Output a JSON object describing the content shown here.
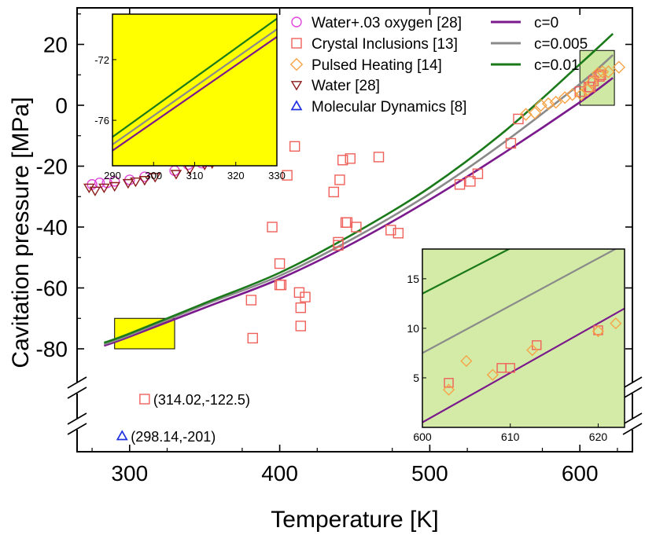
{
  "chart_data": {
    "type": "scatter",
    "title": "",
    "xlabel": "Temperature [K]",
    "ylabel": "Cavitation pressure [MPa]",
    "xlim": [
      265,
      635
    ],
    "ylim_main": [
      -88,
      32
    ],
    "yticks_main": [
      -80,
      -60,
      -40,
      -20,
      0,
      20
    ],
    "xticks": [
      300,
      400,
      500,
      600
    ],
    "legend_markers": [
      {
        "key": "water_oxygen",
        "label": "Water+.03 oxygen [28]",
        "marker": "circle",
        "color": "#e044d8"
      },
      {
        "key": "crystal",
        "label": "Crystal Inclusions [13]",
        "marker": "square",
        "color": "#f0605a"
      },
      {
        "key": "pulsed",
        "label": "Pulsed Heating [14]",
        "marker": "diamond",
        "color": "#f7a347"
      },
      {
        "key": "water",
        "label": "Water [28]",
        "marker": "triangle-down",
        "color": "#8b1a1a"
      },
      {
        "key": "md",
        "label": "Molecular Dynamics [8]",
        "marker": "triangle-up",
        "color": "#1f2fe0"
      }
    ],
    "legend_lines": [
      {
        "key": "c0",
        "label": "c=0",
        "color": "#7b1a8c"
      },
      {
        "key": "c005",
        "label": "c=0.005",
        "color": "#8a8a8a"
      },
      {
        "key": "c01",
        "label": "c=0.01",
        "color": "#1a7a1a"
      }
    ],
    "series": {
      "water_oxygen": [
        [
          275,
          -26
        ],
        [
          280,
          -25.5
        ],
        [
          285,
          -25.5
        ],
        [
          290,
          -25
        ],
        [
          300,
          -24.5
        ],
        [
          310,
          -23.5
        ],
        [
          330,
          -21.5
        ],
        [
          339,
          -19.5
        ],
        [
          348,
          -19
        ],
        [
          353,
          -18.5
        ]
      ],
      "water": [
        [
          273,
          -27
        ],
        [
          277,
          -28
        ],
        [
          283,
          -27
        ],
        [
          290,
          -26.5
        ],
        [
          299,
          -25.5
        ],
        [
          304,
          -25
        ],
        [
          310,
          -24.5
        ],
        [
          317,
          -23.5
        ],
        [
          331,
          -22.5
        ],
        [
          340,
          -21
        ],
        [
          350,
          -19.5
        ],
        [
          355,
          -19
        ]
      ],
      "crystal": [
        [
          381,
          -64
        ],
        [
          382,
          -76.5
        ],
        [
          395,
          -40
        ],
        [
          400,
          -52
        ],
        [
          400,
          -59
        ],
        [
          401,
          -59
        ],
        [
          405,
          -23
        ],
        [
          410,
          -13.5
        ],
        [
          413,
          -61.5
        ],
        [
          414,
          -66.5
        ],
        [
          414,
          -72.5
        ],
        [
          417,
          -63
        ],
        [
          436,
          -28.5
        ],
        [
          439,
          -46
        ],
        [
          439,
          -45
        ],
        [
          440,
          -24.5
        ],
        [
          442,
          -18
        ],
        [
          444,
          -38.5
        ],
        [
          445,
          -38.5
        ],
        [
          447,
          -17.5
        ],
        [
          451,
          -40
        ],
        [
          466,
          -17
        ],
        [
          474,
          -41
        ],
        [
          479,
          -42
        ],
        [
          520,
          -26
        ],
        [
          527,
          -25
        ],
        [
          532,
          -22.5
        ],
        [
          554,
          -12.5
        ],
        [
          559,
          -4.5
        ],
        [
          600,
          4.5
        ],
        [
          606,
          6
        ],
        [
          607,
          6
        ],
        [
          609,
          8
        ],
        [
          613,
          9.5
        ],
        [
          614,
          10
        ]
      ],
      "pulsed": [
        [
          564,
          -3
        ],
        [
          570,
          -2.5
        ],
        [
          574,
          0
        ],
        [
          579,
          0.5
        ],
        [
          584,
          1
        ],
        [
          590,
          2.5
        ],
        [
          595,
          3.5
        ],
        [
          601,
          3.5
        ],
        [
          605,
          5
        ],
        [
          608,
          7.5
        ],
        [
          612,
          10.5
        ],
        [
          615,
          11
        ],
        [
          619,
          11
        ],
        [
          626,
          12.5
        ]
      ],
      "outliers": [
        {
          "marker": "square",
          "color": "#f0605a",
          "x": 310,
          "label": "(314.02,-122.5)"
        },
        {
          "marker": "triangle-up",
          "color": "#1f2fe0",
          "x": 295,
          "label": "(298.14,-201)"
        }
      ]
    },
    "curves": {
      "c0": [
        [
          283,
          -79
        ],
        [
          300,
          -76
        ],
        [
          350,
          -66.5
        ],
        [
          400,
          -57
        ],
        [
          450,
          -45
        ],
        [
          500,
          -31
        ],
        [
          550,
          -15.5
        ],
        [
          600,
          1
        ],
        [
          622,
          9
        ]
      ],
      "c005": [
        [
          283,
          -78.5
        ],
        [
          300,
          -75.5
        ],
        [
          350,
          -65.5
        ],
        [
          400,
          -56
        ],
        [
          450,
          -43.5
        ],
        [
          500,
          -29
        ],
        [
          550,
          -12
        ],
        [
          600,
          7
        ],
        [
          622,
          16.5
        ]
      ],
      "c01": [
        [
          283,
          -78
        ],
        [
          300,
          -75
        ],
        [
          350,
          -65
        ],
        [
          400,
          -55
        ],
        [
          450,
          -42
        ],
        [
          500,
          -27
        ],
        [
          550,
          -8.5
        ],
        [
          600,
          13.5
        ],
        [
          622,
          23.5
        ]
      ]
    },
    "zoom_boxes": [
      {
        "color": "#ffff00",
        "x": [
          290,
          330
        ],
        "y": [
          -80,
          -70
        ]
      },
      {
        "color": "#cfe8a3",
        "x": [
          600,
          623
        ],
        "y": [
          0,
          18
        ]
      }
    ],
    "inset_left": {
      "xlim": [
        290,
        330
      ],
      "xticks": [
        290,
        300,
        310,
        320,
        330
      ],
      "ylim": [
        -79,
        -69
      ],
      "yticks": [
        -72,
        -76
      ],
      "bg": "#ffff00",
      "lines": {
        "c0": [
          [
            290,
            -78
          ],
          [
            330,
            -70.5
          ]
        ],
        "c005": [
          [
            290,
            -77.6
          ],
          [
            330,
            -70
          ]
        ],
        "c01": [
          [
            290,
            -77.1
          ],
          [
            330,
            -69.3
          ]
        ]
      }
    },
    "inset_right": {
      "xlim": [
        600,
        623
      ],
      "xticks": [
        600,
        610,
        620
      ],
      "ylim": [
        0,
        18
      ],
      "yticks": [
        5,
        10,
        15
      ],
      "bg": "#d3eba6",
      "lines": {
        "c0": [
          [
            600,
            0.5
          ],
          [
            623,
            12
          ]
        ],
        "c005": [
          [
            600,
            7.5
          ],
          [
            623,
            18.5
          ]
        ],
        "c01": [
          [
            600,
            13.5
          ],
          [
            623,
            24
          ]
        ]
      },
      "crystal": [
        [
          603,
          4.5
        ],
        [
          609,
          6
        ],
        [
          610,
          6
        ],
        [
          613,
          8.3
        ],
        [
          620,
          9.8
        ]
      ],
      "pulsed": [
        [
          603,
          3.8
        ],
        [
          605,
          6.7
        ],
        [
          608,
          5.3
        ],
        [
          612.5,
          7.8
        ],
        [
          620,
          9.7
        ],
        [
          622,
          10.5
        ]
      ]
    }
  }
}
